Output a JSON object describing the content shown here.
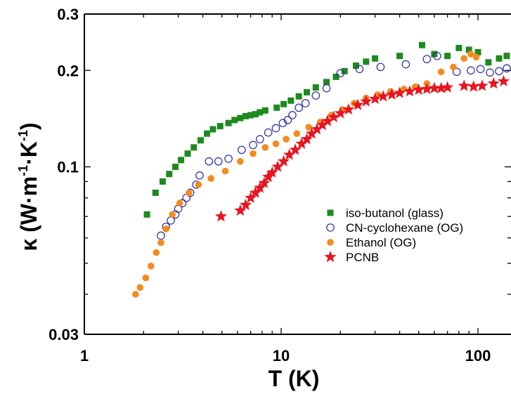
{
  "chart_data": {
    "type": "scatter",
    "title": "",
    "xlabel": "T (K)",
    "ylabel": "κ (W·m⁻¹·K⁻¹)",
    "ylabel_parts": {
      "symbol": "κ",
      "open": " (W·m",
      "exp1": "-1",
      "mid": "·K",
      "exp2": "-1",
      "close": ")"
    },
    "x_scale": "log",
    "y_scale": "log",
    "xlim": [
      1,
      140
    ],
    "ylim": [
      0.03,
      0.3
    ],
    "x_ticks": [
      {
        "value": 1,
        "label": "1"
      },
      {
        "value": 10,
        "label": "10"
      },
      {
        "value": 100,
        "label": "100"
      }
    ],
    "y_ticks": [
      {
        "value": 0.03,
        "label": "0.03"
      },
      {
        "value": 0.1,
        "label": "0.1"
      },
      {
        "value": 0.2,
        "label": "0.2"
      },
      {
        "value": 0.3,
        "label": "0.3"
      }
    ],
    "grid": false,
    "legend_position": "lower-right",
    "series": [
      {
        "name": "iso-butanol (glass)",
        "marker": "square-filled",
        "color": "#1e8a1e",
        "points": [
          [
            2.08,
            0.071
          ],
          [
            2.3,
            0.083
          ],
          [
            2.5,
            0.09
          ],
          [
            2.7,
            0.095
          ],
          [
            2.9,
            0.1
          ],
          [
            3.1,
            0.105
          ],
          [
            3.35,
            0.11
          ],
          [
            3.6,
            0.115
          ],
          [
            3.9,
            0.121
          ],
          [
            4.2,
            0.127
          ],
          [
            4.5,
            0.131
          ],
          [
            4.9,
            0.134
          ],
          [
            5.4,
            0.137
          ],
          [
            5.8,
            0.14
          ],
          [
            6.2,
            0.142
          ],
          [
            6.6,
            0.144
          ],
          [
            7.0,
            0.145
          ],
          [
            7.4,
            0.146
          ],
          [
            7.8,
            0.148
          ],
          [
            8.3,
            0.15
          ],
          [
            9.5,
            0.153
          ],
          [
            10.3,
            0.157
          ],
          [
            11.2,
            0.161
          ],
          [
            12.3,
            0.166
          ],
          [
            13.5,
            0.171
          ],
          [
            15.0,
            0.177
          ],
          [
            17.0,
            0.184
          ],
          [
            19.0,
            0.191
          ],
          [
            21.0,
            0.199
          ],
          [
            24.0,
            0.207
          ],
          [
            27.0,
            0.213
          ],
          [
            30.0,
            0.218
          ],
          [
            40.0,
            0.222
          ],
          [
            52.0,
            0.24
          ],
          [
            60.0,
            0.225
          ],
          [
            70.0,
            0.222
          ],
          [
            80.0,
            0.235
          ],
          [
            90.0,
            0.232
          ],
          [
            100.0,
            0.228
          ],
          [
            113.0,
            0.212
          ],
          [
            128.0,
            0.218
          ],
          [
            140.0,
            0.222
          ]
        ]
      },
      {
        "name": "CN-cyclohexane (OG)",
        "marker": "circle-open",
        "color": "#2a2aa0",
        "points": [
          [
            2.45,
            0.061
          ],
          [
            2.6,
            0.065
          ],
          [
            2.75,
            0.068
          ],
          [
            2.9,
            0.071
          ],
          [
            3.0,
            0.074
          ],
          [
            3.15,
            0.077
          ],
          [
            3.3,
            0.08
          ],
          [
            3.45,
            0.083
          ],
          [
            3.7,
            0.088
          ],
          [
            3.85,
            0.094
          ],
          [
            4.3,
            0.104
          ],
          [
            4.8,
            0.104
          ],
          [
            5.4,
            0.106
          ],
          [
            6.3,
            0.113
          ],
          [
            7.2,
            0.117
          ],
          [
            7.8,
            0.122
          ],
          [
            8.6,
            0.128
          ],
          [
            9.4,
            0.132
          ],
          [
            10.2,
            0.137
          ],
          [
            10.8,
            0.14
          ],
          [
            11.4,
            0.145
          ],
          [
            12.3,
            0.153
          ],
          [
            13.3,
            0.158
          ],
          [
            15.0,
            0.167
          ],
          [
            17.0,
            0.176
          ],
          [
            20.0,
            0.196
          ],
          [
            25.0,
            0.202
          ],
          [
            32.0,
            0.205
          ],
          [
            43.0,
            0.209
          ],
          [
            55.0,
            0.217
          ],
          [
            62.0,
            0.222
          ],
          [
            78.0,
            0.198
          ],
          [
            92.0,
            0.2
          ],
          [
            103.0,
            0.202
          ],
          [
            115.0,
            0.197
          ],
          [
            128.0,
            0.199
          ],
          [
            140.0,
            0.203
          ]
        ]
      },
      {
        "name": "Ethanol (OG)",
        "marker": "circle-filled",
        "color": "#f28c1e",
        "points": [
          [
            1.82,
            0.04
          ],
          [
            1.92,
            0.042
          ],
          [
            2.05,
            0.045
          ],
          [
            2.18,
            0.049
          ],
          [
            2.32,
            0.054
          ],
          [
            2.45,
            0.058
          ],
          [
            2.6,
            0.064
          ],
          [
            2.8,
            0.071
          ],
          [
            3.05,
            0.077
          ],
          [
            3.4,
            0.083
          ],
          [
            3.8,
            0.088
          ],
          [
            4.4,
            0.092
          ],
          [
            5.2,
            0.097
          ],
          [
            6.2,
            0.104
          ],
          [
            7.2,
            0.11
          ],
          [
            8.3,
            0.115
          ],
          [
            9.4,
            0.118
          ],
          [
            10.6,
            0.122
          ],
          [
            12.0,
            0.127
          ],
          [
            13.8,
            0.133
          ],
          [
            15.8,
            0.138
          ],
          [
            18.0,
            0.145
          ],
          [
            20.5,
            0.151
          ],
          [
            23.5,
            0.158
          ],
          [
            27.0,
            0.164
          ],
          [
            31.0,
            0.168
          ],
          [
            36.0,
            0.172
          ],
          [
            42.0,
            0.175
          ],
          [
            48.0,
            0.178
          ],
          [
            55.0,
            0.182
          ],
          [
            65.0,
            0.198
          ],
          [
            75.0,
            0.205
          ],
          [
            85.0,
            0.218
          ],
          [
            92.0,
            0.225
          ],
          [
            98.0,
            0.22
          ]
        ]
      },
      {
        "name": "PCNB",
        "marker": "star-filled",
        "color": "#e8141e",
        "points": [
          [
            4.95,
            0.07
          ],
          [
            6.2,
            0.073
          ],
          [
            6.6,
            0.076
          ],
          [
            7.0,
            0.08
          ],
          [
            7.4,
            0.083
          ],
          [
            7.8,
            0.086
          ],
          [
            8.2,
            0.089
          ],
          [
            8.6,
            0.093
          ],
          [
            9.0,
            0.096
          ],
          [
            9.6,
            0.1
          ],
          [
            10.3,
            0.104
          ],
          [
            11.0,
            0.109
          ],
          [
            11.8,
            0.113
          ],
          [
            12.7,
            0.118
          ],
          [
            13.5,
            0.122
          ],
          [
            14.3,
            0.127
          ],
          [
            15.2,
            0.131
          ],
          [
            16.2,
            0.135
          ],
          [
            17.2,
            0.139
          ],
          [
            18.5,
            0.143
          ],
          [
            20.0,
            0.147
          ],
          [
            22.0,
            0.151
          ],
          [
            24.5,
            0.156
          ],
          [
            27.0,
            0.16
          ],
          [
            30.0,
            0.163
          ],
          [
            33.0,
            0.166
          ],
          [
            36.5,
            0.168
          ],
          [
            40.0,
            0.17
          ],
          [
            45.0,
            0.172
          ],
          [
            50.0,
            0.174
          ],
          [
            55.0,
            0.175
          ],
          [
            60.0,
            0.176
          ],
          [
            65.0,
            0.176
          ],
          [
            70.0,
            0.177
          ],
          [
            85.0,
            0.179
          ],
          [
            95.0,
            0.178
          ],
          [
            105.0,
            0.179
          ],
          [
            120.0,
            0.182
          ],
          [
            135.0,
            0.185
          ]
        ]
      }
    ]
  }
}
